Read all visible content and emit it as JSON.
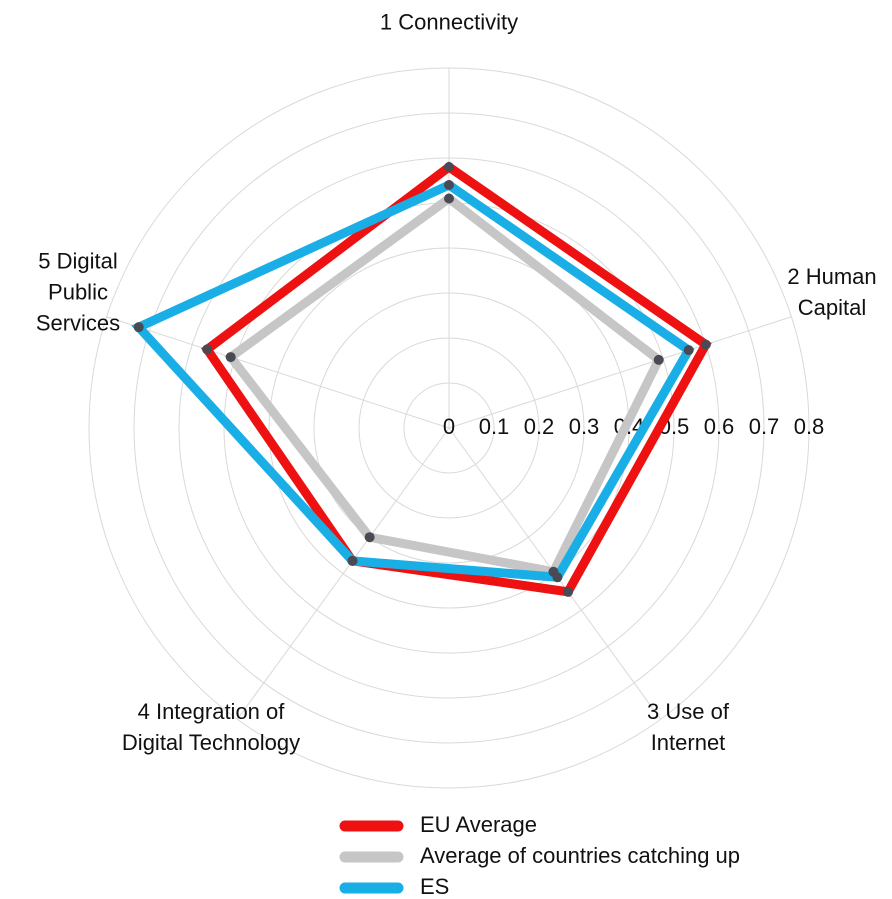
{
  "chart_data": {
    "type": "radar",
    "categories": [
      "1 Connectivity",
      "2 Human Capital",
      "3 Use of Internet",
      "4 Integration of Digital Technology",
      "5 Digital Public Services"
    ],
    "series": [
      {
        "name": "EU Average",
        "color": "#ee1111",
        "values": [
          0.58,
          0.6,
          0.45,
          0.365,
          0.565
        ]
      },
      {
        "name": "Average of countries catching up",
        "color": "#c6c6c6",
        "values": [
          0.51,
          0.49,
          0.395,
          0.3,
          0.51
        ]
      },
      {
        "name": "ES",
        "color": "#1aaee6",
        "values": [
          0.54,
          0.56,
          0.41,
          0.365,
          0.725
        ]
      }
    ],
    "ylim": [
      0,
      0.8
    ],
    "yticks": [
      0,
      0.1,
      0.2,
      0.3,
      0.4,
      0.5,
      0.6,
      0.7,
      0.8
    ],
    "grid": true,
    "legend": "bottom"
  }
}
